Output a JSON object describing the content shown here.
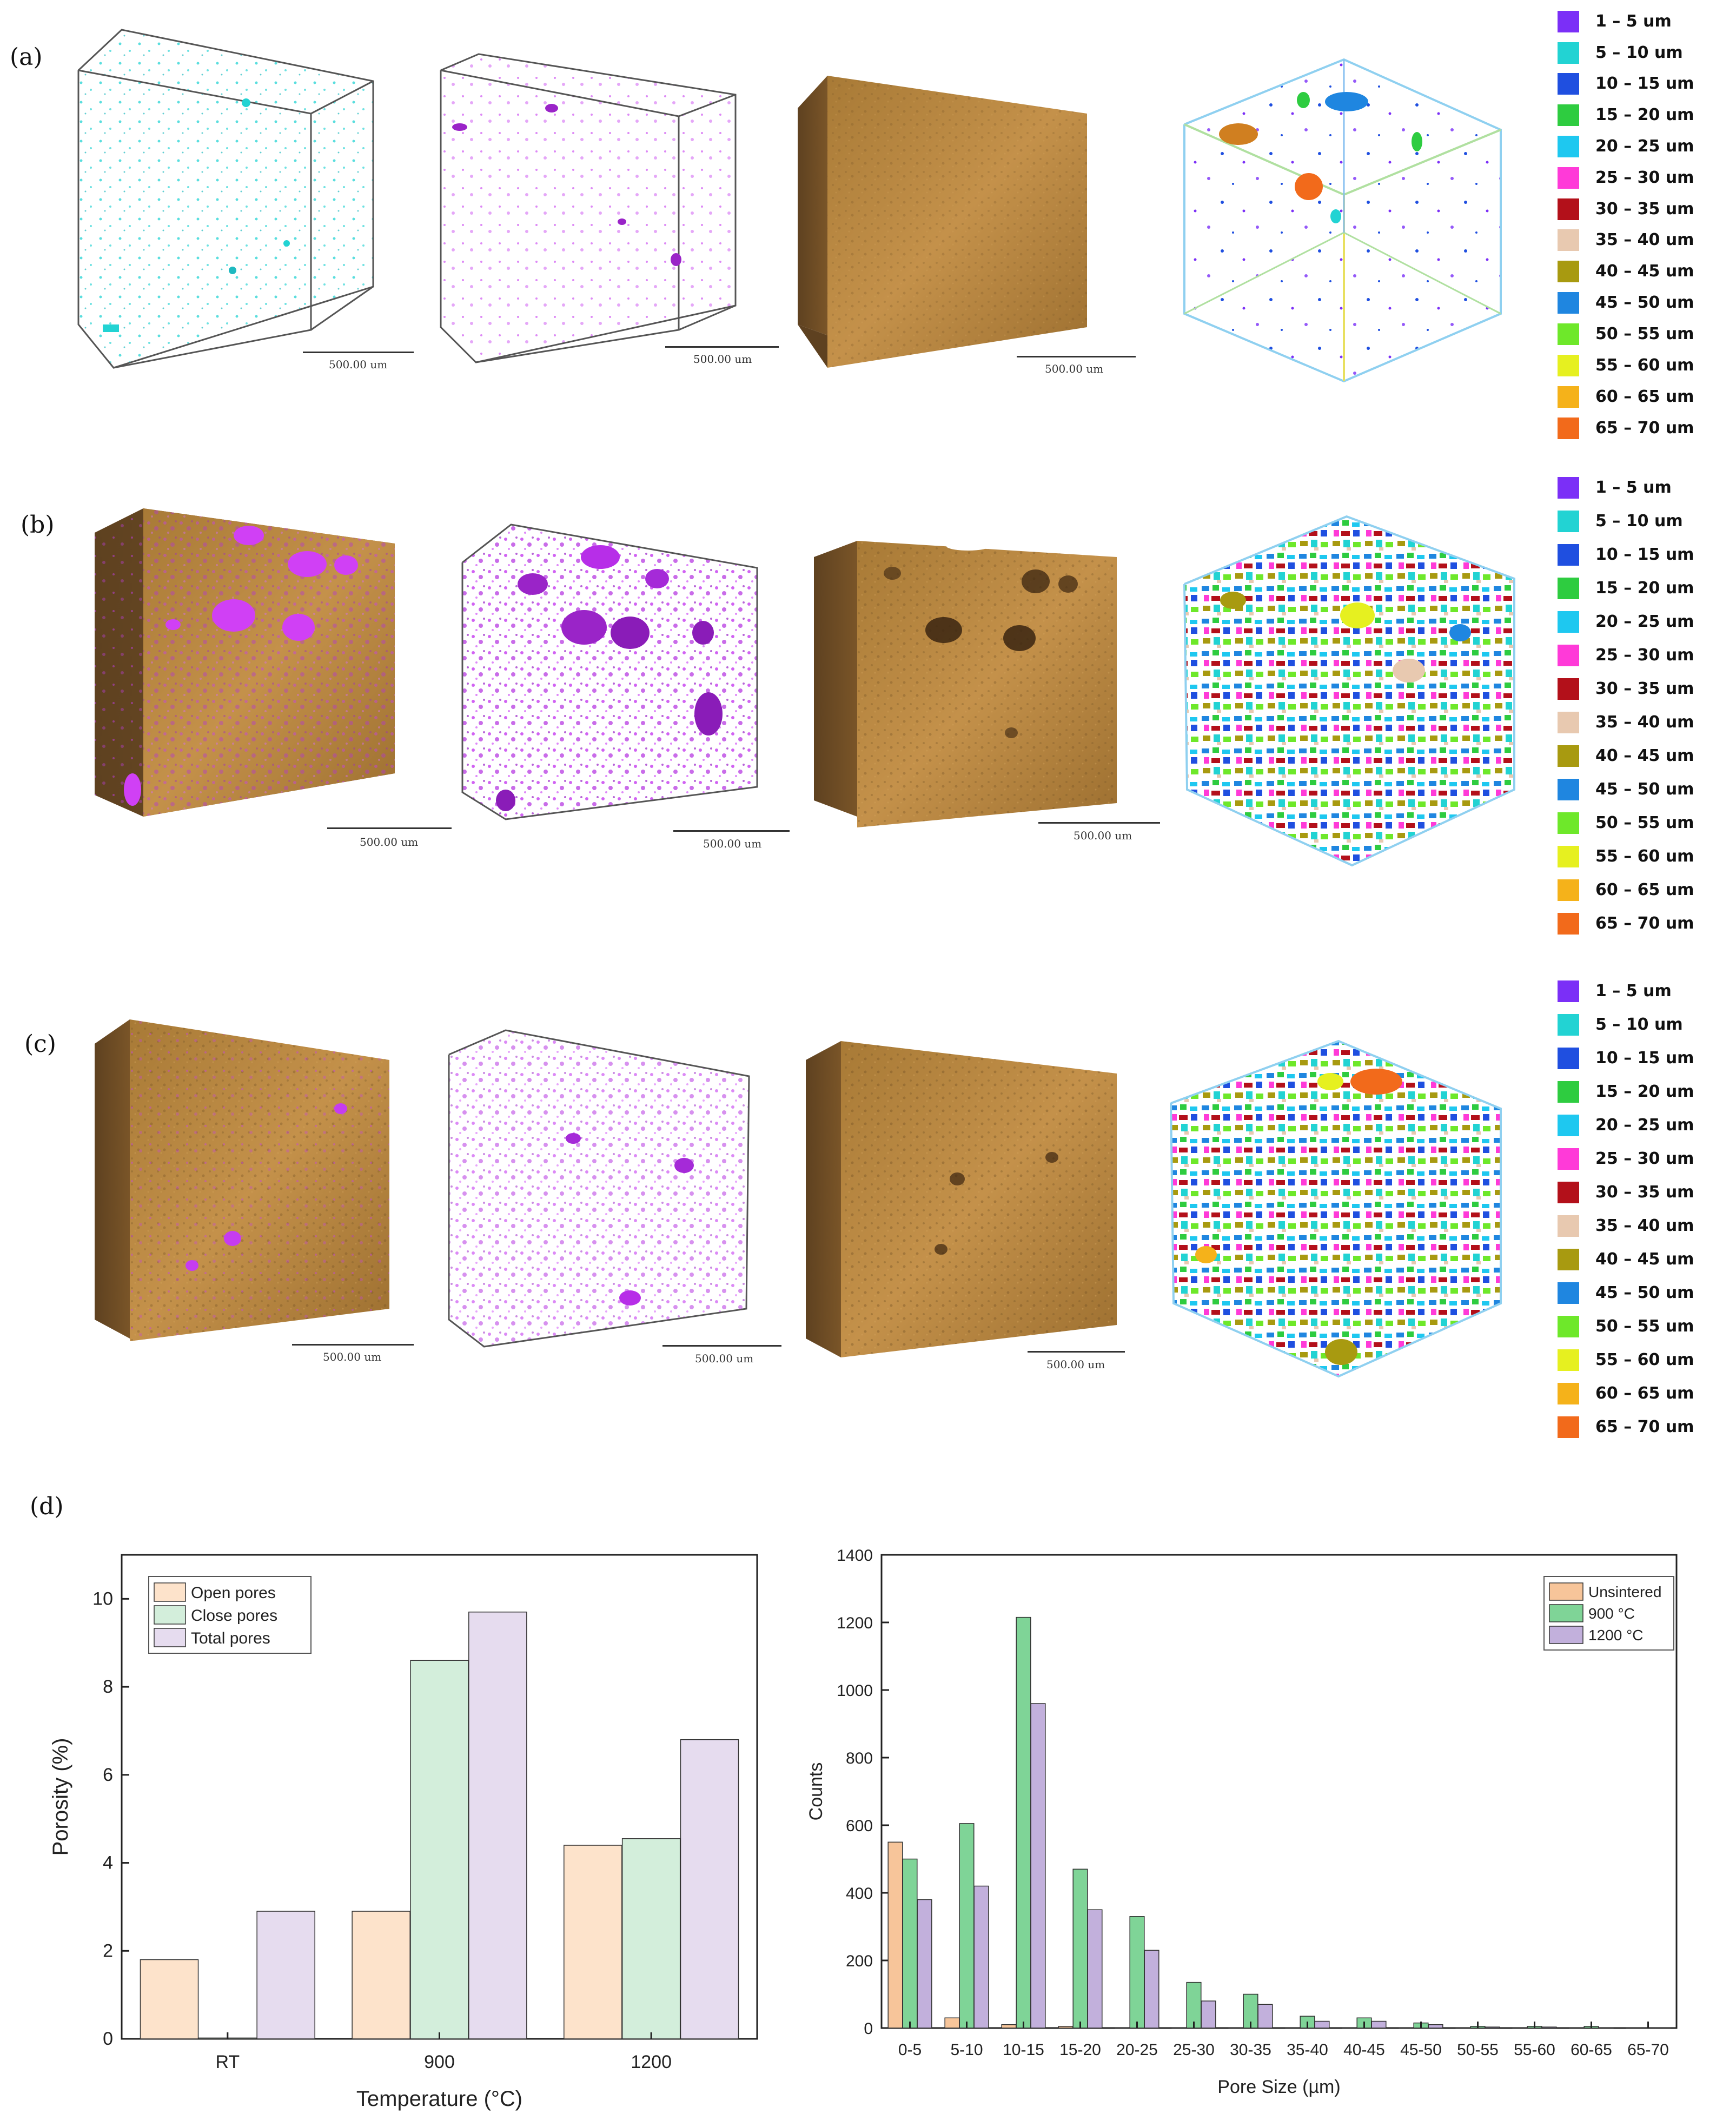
{
  "panel_labels": [
    "(a)",
    "(b)",
    "(c)",
    "(d)"
  ],
  "scale_bar_label": "500.00 um",
  "legend": {
    "items": [
      {
        "label": "1 – 5 um",
        "color": "#7b2ff7"
      },
      {
        "label": "5 – 10 um",
        "color": "#22d3d3"
      },
      {
        "label": "10 – 15 um",
        "color": "#1f4fe0"
      },
      {
        "label": "15 – 20 um",
        "color": "#2ecc40"
      },
      {
        "label": "20 – 25 um",
        "color": "#1ec8f0"
      },
      {
        "label": "25 – 30 um",
        "color": "#ff3ad8"
      },
      {
        "label": "30 – 35 um",
        "color": "#b3101a"
      },
      {
        "label": "35 – 40 um",
        "color": "#e8c9b0"
      },
      {
        "label": "40 – 45 um",
        "color": "#a89a10"
      },
      {
        "label": "45 – 50 um",
        "color": "#1f86e0"
      },
      {
        "label": "50 – 55 um",
        "color": "#6ee82a"
      },
      {
        "label": "55 – 60 um",
        "color": "#e6f020"
      },
      {
        "label": "60 – 65 um",
        "color": "#f5b21a"
      },
      {
        "label": "65 – 70 um",
        "color": "#f26a1b"
      }
    ]
  },
  "colors": {
    "pore_cyan": "#22d3d3",
    "pore_magenta": "#c63cf0",
    "matrix_brown": "#b8873e",
    "frame": "#555555"
  },
  "chart_data": [
    {
      "type": "bar",
      "categories": [
        "RT",
        "900",
        "1200"
      ],
      "series": [
        {
          "name": "Open pores",
          "values": [
            1.8,
            2.9,
            4.4
          ],
          "color": "#fde3cb"
        },
        {
          "name": "Close pores",
          "values": [
            0.02,
            8.6,
            4.55
          ],
          "color": "#d3eedb"
        },
        {
          "name": "Total pores",
          "values": [
            2.9,
            9.7,
            6.8
          ],
          "color": "#e6dcef"
        }
      ],
      "xlabel": "Temperature (°C)",
      "ylabel": "Porosity (%)",
      "ylim": [
        0,
        11
      ],
      "yticks": [
        0,
        2,
        4,
        6,
        8,
        10
      ],
      "legend": "top-left",
      "grid": false
    },
    {
      "type": "bar",
      "categories": [
        "0-5",
        "5-10",
        "10-15",
        "15-20",
        "20-25",
        "25-30",
        "30-35",
        "35-40",
        "40-45",
        "45-50",
        "50-55",
        "55-60",
        "60-65",
        "65-70"
      ],
      "series": [
        {
          "name": "Unsintered",
          "values": [
            550,
            30,
            10,
            5,
            0,
            0,
            0,
            0,
            0,
            0,
            0,
            0,
            0,
            0
          ],
          "color": "#f7c59a"
        },
        {
          "name": "900 °C",
          "values": [
            500,
            605,
            1215,
            470,
            330,
            135,
            100,
            35,
            30,
            15,
            5,
            5,
            5,
            0
          ],
          "color": "#7fd497"
        },
        {
          "name": "1200 °C",
          "values": [
            380,
            420,
            960,
            350,
            230,
            80,
            70,
            20,
            20,
            10,
            3,
            3,
            0,
            0
          ],
          "color": "#c2b0dc"
        }
      ],
      "xlabel": "Pore Size (µm)",
      "ylabel": "Counts",
      "ylim": [
        0,
        1400
      ],
      "yticks": [
        0,
        200,
        400,
        600,
        800,
        1000,
        1200,
        1400
      ],
      "legend": "top-right",
      "grid": false
    }
  ]
}
